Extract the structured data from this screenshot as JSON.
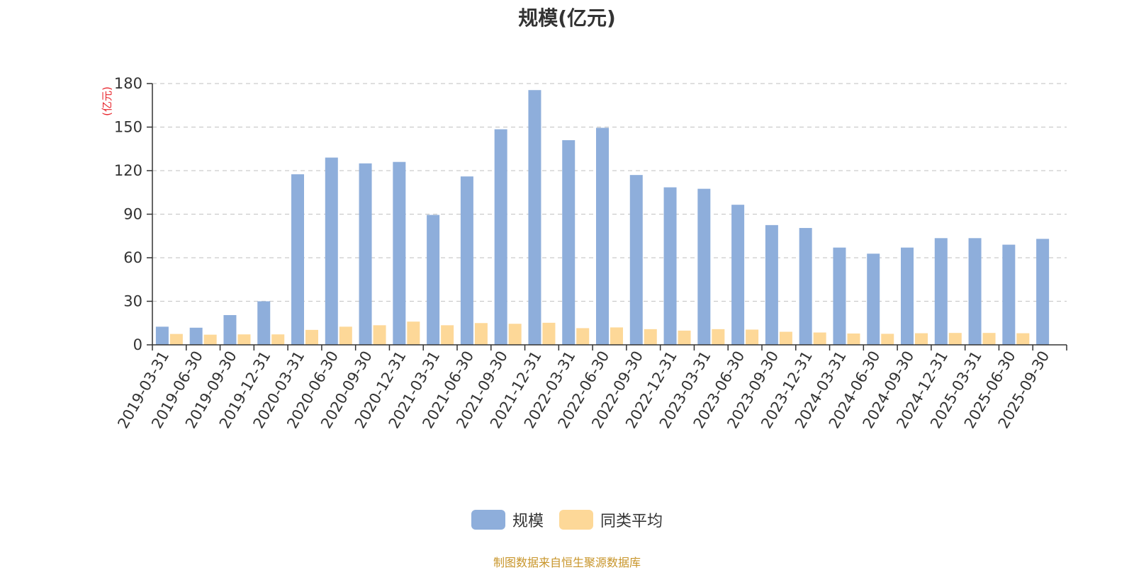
{
  "chart_data": {
    "type": "bar",
    "title": "规模(亿元)",
    "ylabel": "(亿元)",
    "xlabel": "",
    "ylim": [
      0,
      180
    ],
    "yticks": [
      0,
      30,
      60,
      90,
      120,
      150,
      180
    ],
    "grid": true,
    "legend_position": "bottom",
    "categories": [
      "2019-03-31",
      "2019-06-30",
      "2019-09-30",
      "2019-12-31",
      "2020-03-31",
      "2020-06-30",
      "2020-09-30",
      "2020-12-31",
      "2021-03-31",
      "2021-06-30",
      "2021-09-30",
      "2021-12-31",
      "2022-03-31",
      "2022-06-30",
      "2022-09-30",
      "2022-12-31",
      "2023-03-31",
      "2023-06-30",
      "2023-09-30",
      "2023-12-31",
      "2024-03-31",
      "2024-06-30",
      "2024-09-30",
      "2024-12-31",
      "2025-03-31",
      "2025-06-30",
      "2025-09-30"
    ],
    "series": [
      {
        "name": "规模",
        "color": "#8eaedb",
        "values": [
          12.5,
          11.8,
          20.5,
          30,
          117.5,
          129,
          125,
          126,
          89.5,
          116,
          148.5,
          175.5,
          141,
          149.5,
          117,
          108.5,
          107.5,
          96.5,
          82.5,
          80.5,
          67,
          62.8,
          67,
          73.5,
          73.5,
          69,
          73
        ]
      },
      {
        "name": "同类平均",
        "color": "#fdd898",
        "values": [
          7.5,
          7,
          7.2,
          7.2,
          10.3,
          12.5,
          13.5,
          16,
          13.5,
          15,
          14.5,
          15.2,
          11.5,
          12,
          10.8,
          9.8,
          10.8,
          10.5,
          9,
          8.5,
          7.8,
          7.6,
          8,
          8.2,
          8.2,
          8,
          null
        ]
      }
    ]
  },
  "source_note": "制图数据来自恒生聚源数据库"
}
